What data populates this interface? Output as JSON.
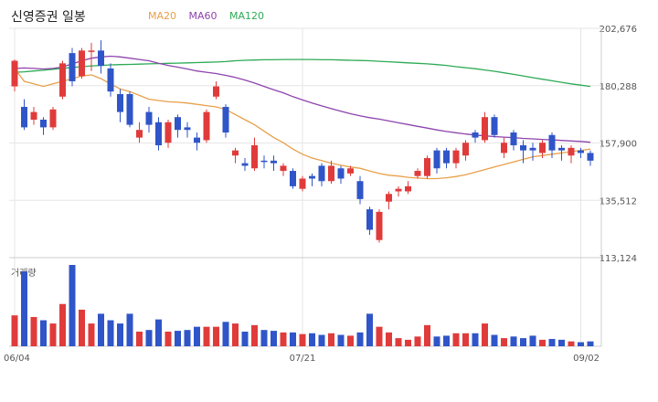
{
  "title": "신영증권 일봉",
  "legend": [
    {
      "name": "MA20",
      "color": "#e8a04a"
    },
    {
      "name": "MA60",
      "color": "#8e44ad"
    },
    {
      "name": "MA120",
      "color": "#2eaa55"
    }
  ],
  "colors": {
    "up": "#e03b3b",
    "down": "#2f55c8",
    "grid": "#e6e6e6",
    "axis": "#cccccc",
    "text": "#555555"
  },
  "chart_data": {
    "type": "candlestick",
    "title": "신영증권 일봉",
    "price_axis": {
      "ticks": [
        113124,
        135512,
        157900,
        180288,
        202676
      ],
      "ylim": [
        113124,
        202676
      ]
    },
    "volume_label": "거래량",
    "x_labels": [
      {
        "label": "06/04",
        "index": 0
      },
      {
        "label": "07/21",
        "index": 30
      },
      {
        "label": "09/02",
        "index": 59
      }
    ],
    "candles": [
      [
        180000,
        190000,
        178000,
        190500,
        "up"
      ],
      [
        172000,
        164000,
        163000,
        175000,
        "down"
      ],
      [
        167000,
        170000,
        165000,
        172000,
        "up"
      ],
      [
        167000,
        164000,
        161000,
        168000,
        "down"
      ],
      [
        164000,
        171000,
        163000,
        172000,
        "up"
      ],
      [
        176000,
        189000,
        175000,
        190000,
        "up"
      ],
      [
        193000,
        182000,
        180000,
        195000,
        "down"
      ],
      [
        184000,
        194000,
        183000,
        195000,
        "up"
      ],
      [
        194000,
        194000,
        186000,
        197000,
        "up"
      ],
      [
        194000,
        188000,
        185000,
        198000,
        "down"
      ],
      [
        187000,
        178000,
        176000,
        189000,
        "down"
      ],
      [
        177000,
        170000,
        166000,
        179000,
        "down"
      ],
      [
        177000,
        165000,
        164000,
        178000,
        "down"
      ],
      [
        160000,
        163000,
        158000,
        166000,
        "up"
      ],
      [
        170000,
        165000,
        162000,
        172000,
        "down"
      ],
      [
        166000,
        157000,
        155000,
        168000,
        "down"
      ],
      [
        158000,
        166000,
        156000,
        167000,
        "up"
      ],
      [
        168000,
        163000,
        160000,
        169000,
        "down"
      ],
      [
        164000,
        163000,
        160000,
        166000,
        "down"
      ],
      [
        160000,
        158000,
        155000,
        162000,
        "down"
      ],
      [
        159000,
        170000,
        158000,
        171000,
        "up"
      ],
      [
        176000,
        180000,
        175000,
        182000,
        "up"
      ],
      [
        172000,
        162000,
        160000,
        173000,
        "down"
      ],
      [
        153000,
        155000,
        150000,
        156000,
        "up"
      ],
      [
        150000,
        149000,
        147000,
        152000,
        "down"
      ],
      [
        148000,
        157000,
        147000,
        160000,
        "up"
      ],
      [
        151000,
        151000,
        148000,
        153000,
        "down"
      ],
      [
        151000,
        150000,
        147000,
        153000,
        "down"
      ],
      [
        149000,
        147000,
        145000,
        150000,
        "up"
      ],
      [
        147000,
        141000,
        140000,
        148000,
        "down"
      ],
      [
        140000,
        144000,
        139000,
        145000,
        "up"
      ],
      [
        144000,
        145000,
        141000,
        146000,
        "down"
      ],
      [
        149000,
        143000,
        141000,
        150000,
        "down"
      ],
      [
        143000,
        149000,
        142000,
        151000,
        "up"
      ],
      [
        148000,
        144000,
        142000,
        149000,
        "down"
      ],
      [
        146000,
        148000,
        145000,
        149000,
        "up"
      ],
      [
        143000,
        136000,
        134000,
        145000,
        "down"
      ],
      [
        132000,
        124000,
        122000,
        133000,
        "down"
      ],
      [
        120000,
        131000,
        119000,
        132000,
        "up"
      ],
      [
        135000,
        138000,
        132000,
        139000,
        "up"
      ],
      [
        139000,
        140000,
        137000,
        141000,
        "up"
      ],
      [
        139000,
        141000,
        138000,
        143000,
        "up"
      ],
      [
        145000,
        147000,
        144000,
        148000,
        "up"
      ],
      [
        145000,
        152000,
        144000,
        153000,
        "up"
      ],
      [
        155000,
        148000,
        146000,
        156000,
        "down"
      ],
      [
        155000,
        150000,
        148000,
        156000,
        "down"
      ],
      [
        150000,
        155000,
        148000,
        156000,
        "up"
      ],
      [
        153000,
        158000,
        151000,
        159000,
        "up"
      ],
      [
        160000,
        162000,
        158000,
        163000,
        "down"
      ],
      [
        159000,
        168000,
        158000,
        170000,
        "up"
      ],
      [
        168000,
        161000,
        160000,
        169000,
        "down"
      ],
      [
        158000,
        154000,
        152000,
        160000,
        "up"
      ],
      [
        162000,
        157000,
        155000,
        163000,
        "down"
      ],
      [
        157000,
        155000,
        150000,
        159000,
        "down"
      ],
      [
        155000,
        156000,
        151000,
        158000,
        "down"
      ],
      [
        154000,
        158000,
        152000,
        159000,
        "up"
      ],
      [
        161000,
        155000,
        152000,
        162000,
        "down"
      ],
      [
        155000,
        156000,
        151000,
        157000,
        "down"
      ],
      [
        156000,
        153000,
        150000,
        157000,
        "up"
      ],
      [
        154000,
        155000,
        152000,
        156000,
        "down"
      ],
      [
        154000,
        151000,
        149000,
        155000,
        "down"
      ]
    ],
    "volumes": [
      [
        0.38,
        "up"
      ],
      [
        0.92,
        "down"
      ],
      [
        0.36,
        "up"
      ],
      [
        0.32,
        "down"
      ],
      [
        0.28,
        "up"
      ],
      [
        0.52,
        "up"
      ],
      [
        1.0,
        "down"
      ],
      [
        0.45,
        "up"
      ],
      [
        0.28,
        "up"
      ],
      [
        0.4,
        "down"
      ],
      [
        0.32,
        "down"
      ],
      [
        0.28,
        "down"
      ],
      [
        0.4,
        "down"
      ],
      [
        0.18,
        "up"
      ],
      [
        0.2,
        "down"
      ],
      [
        0.33,
        "down"
      ],
      [
        0.18,
        "up"
      ],
      [
        0.19,
        "down"
      ],
      [
        0.2,
        "down"
      ],
      [
        0.24,
        "down"
      ],
      [
        0.24,
        "up"
      ],
      [
        0.24,
        "up"
      ],
      [
        0.3,
        "down"
      ],
      [
        0.28,
        "up"
      ],
      [
        0.18,
        "down"
      ],
      [
        0.26,
        "up"
      ],
      [
        0.2,
        "down"
      ],
      [
        0.19,
        "down"
      ],
      [
        0.17,
        "up"
      ],
      [
        0.17,
        "down"
      ],
      [
        0.15,
        "up"
      ],
      [
        0.16,
        "down"
      ],
      [
        0.14,
        "down"
      ],
      [
        0.16,
        "up"
      ],
      [
        0.14,
        "down"
      ],
      [
        0.13,
        "up"
      ],
      [
        0.17,
        "down"
      ],
      [
        0.4,
        "down"
      ],
      [
        0.24,
        "up"
      ],
      [
        0.17,
        "up"
      ],
      [
        0.1,
        "up"
      ],
      [
        0.08,
        "up"
      ],
      [
        0.12,
        "up"
      ],
      [
        0.26,
        "up"
      ],
      [
        0.12,
        "down"
      ],
      [
        0.13,
        "down"
      ],
      [
        0.16,
        "up"
      ],
      [
        0.16,
        "up"
      ],
      [
        0.16,
        "down"
      ],
      [
        0.28,
        "up"
      ],
      [
        0.14,
        "down"
      ],
      [
        0.1,
        "up"
      ],
      [
        0.12,
        "down"
      ],
      [
        0.1,
        "down"
      ],
      [
        0.13,
        "down"
      ],
      [
        0.08,
        "up"
      ],
      [
        0.09,
        "down"
      ],
      [
        0.08,
        "down"
      ],
      [
        0.06,
        "up"
      ],
      [
        0.05,
        "down"
      ],
      [
        0.06,
        "down"
      ]
    ],
    "ma20": [
      187000,
      182000,
      181000,
      180000,
      181000,
      182000,
      183000,
      184000,
      184500,
      183000,
      181000,
      179000,
      178000,
      176500,
      175000,
      174500,
      174000,
      173800,
      173500,
      173000,
      172500,
      172000,
      171000,
      169000,
      167000,
      165000,
      162500,
      160000,
      158000,
      155500,
      153500,
      152000,
      151000,
      150000,
      149200,
      148500,
      148000,
      147000,
      146000,
      145300,
      145000,
      144500,
      144200,
      144000,
      144000,
      144300,
      144800,
      145500,
      146500,
      147500,
      148500,
      149500,
      150500,
      151500,
      152500,
      153000,
      153500,
      154000,
      154500,
      155000,
      155500
    ],
    "ma60": [
      187000,
      187200,
      187000,
      186800,
      187000,
      187600,
      188800,
      190000,
      191000,
      191500,
      191800,
      191500,
      191000,
      190500,
      190000,
      189000,
      188200,
      187500,
      186800,
      186000,
      185500,
      185000,
      184300,
      183500,
      182500,
      181300,
      180000,
      178700,
      177500,
      176000,
      174700,
      173500,
      172400,
      171300,
      170300,
      169300,
      168500,
      167800,
      167200,
      166500,
      165800,
      165100,
      164400,
      163700,
      163000,
      162400,
      161900,
      161400,
      161000,
      160700,
      160400,
      160200,
      160000,
      159700,
      159500,
      159300,
      159100,
      158900,
      158700,
      158500,
      158200
    ],
    "ma120": [
      185500,
      185700,
      186000,
      186300,
      186700,
      187000,
      187400,
      187700,
      188000,
      188200,
      188400,
      188500,
      188600,
      188700,
      188800,
      188900,
      189000,
      189100,
      189200,
      189300,
      189400,
      189500,
      189700,
      190000,
      190200,
      190300,
      190400,
      190400,
      190500,
      190500,
      190500,
      190500,
      190400,
      190400,
      190300,
      190200,
      190100,
      190000,
      189800,
      189600,
      189400,
      189200,
      189000,
      188800,
      188500,
      188200,
      187700,
      187300,
      186900,
      186400,
      185900,
      185300,
      184700,
      184100,
      183400,
      182800,
      182200,
      181600,
      181000,
      180500,
      180000
    ]
  }
}
